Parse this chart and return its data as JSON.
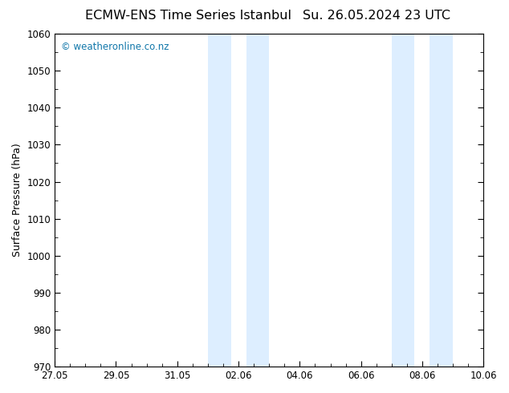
{
  "title_left": "ECMW-ENS Time Series Istanbul",
  "title_right": "Su. 26.05.2024 23 UTC",
  "ylabel": "Surface Pressure (hPa)",
  "ylim": [
    970,
    1060
  ],
  "yticks": [
    970,
    980,
    990,
    1000,
    1010,
    1020,
    1030,
    1040,
    1050,
    1060
  ],
  "xlim_start": 0,
  "xlim_end": 14,
  "xtick_labels": [
    "27.05",
    "29.05",
    "31.05",
    "02.06",
    "04.06",
    "06.06",
    "08.06",
    "10.06"
  ],
  "xtick_positions": [
    0,
    2,
    4,
    6,
    8,
    10,
    12,
    14
  ],
  "shaded_bands": [
    {
      "x_start": 5.0,
      "x_end": 5.75
    },
    {
      "x_start": 6.25,
      "x_end": 7.0
    },
    {
      "x_start": 11.0,
      "x_end": 11.75
    },
    {
      "x_start": 12.25,
      "x_end": 13.0
    }
  ],
  "shaded_color": "#ddeeff",
  "plot_bg_color": "#ffffff",
  "watermark_text": "© weatheronline.co.nz",
  "watermark_color": "#1177aa",
  "title_fontsize": 11.5,
  "axis_label_fontsize": 9,
  "tick_fontsize": 8.5,
  "watermark_fontsize": 8.5,
  "figure_bg": "#ffffff"
}
